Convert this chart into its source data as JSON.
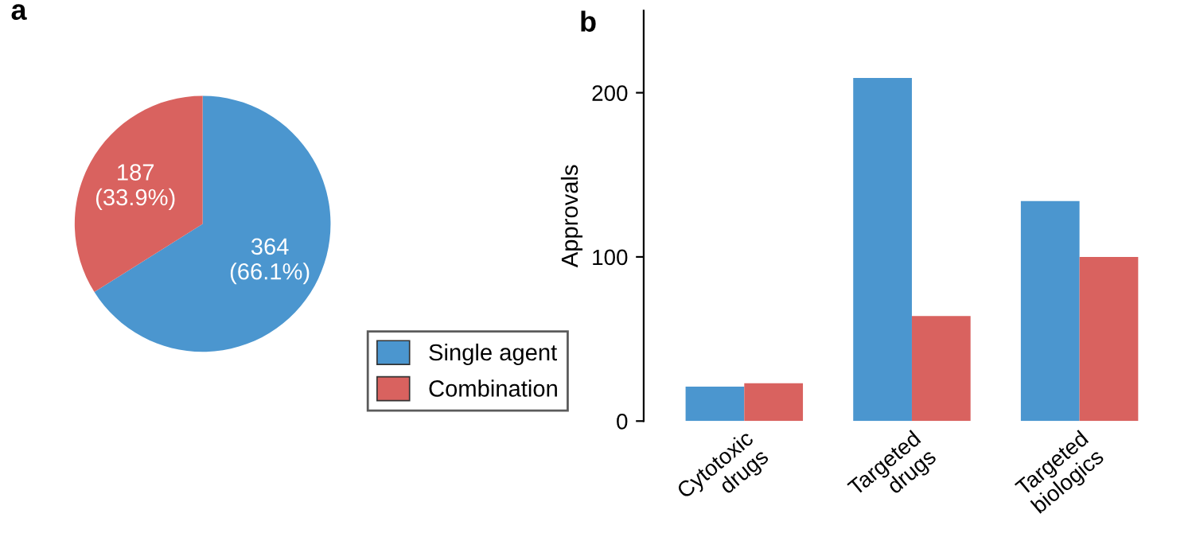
{
  "chart_data": [
    {
      "type": "pie",
      "title": "a",
      "categories": [
        "Single agent",
        "Combination"
      ],
      "values": [
        364,
        187
      ],
      "colors": [
        "#4b96cf",
        "#d9625f"
      ],
      "value_labels": [
        "364\n(66.1%)",
        "187\n(33.9%)"
      ],
      "legend": "bottom right"
    },
    {
      "type": "bar",
      "title": "b",
      "ylabel": "Approvals",
      "categories": [
        "Cytotoxic\ndrugs",
        "Targeted\ndrugs",
        "Targeted\nbiologics"
      ],
      "series": [
        {
          "color": "#4b96cf",
          "values": [
            21,
            209,
            134
          ]
        },
        {
          "color": "#d9625f",
          "values": [
            23,
            64,
            100
          ]
        }
      ],
      "ylim": [
        0,
        250
      ],
      "yticks": [
        0,
        100,
        200
      ],
      "grid": false
    }
  ]
}
